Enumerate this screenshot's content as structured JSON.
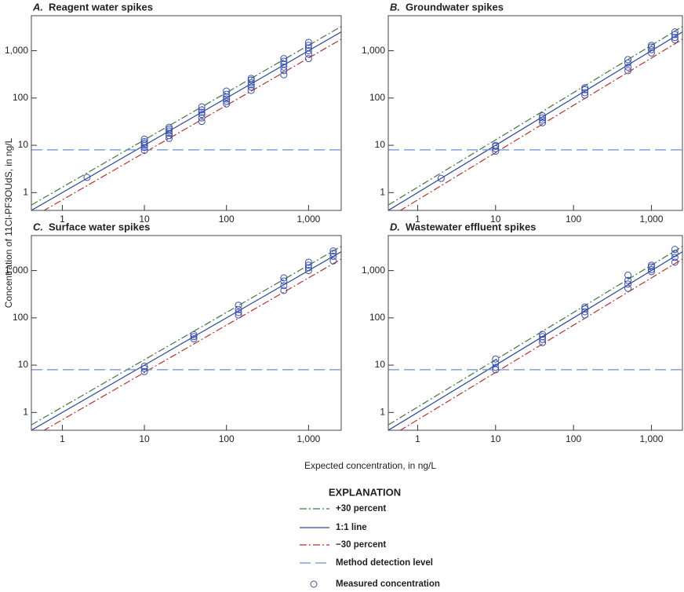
{
  "y_label": "Concentration of 11Cl-PF3OUdS, in ng/L",
  "x_label": "Expected concentration, in ng/L",
  "legend_title": "EXPLANATION",
  "chart_data": [
    {
      "type": "scatter",
      "panel": "A.",
      "title": "Reagent water spikes",
      "xscale": "log",
      "yscale": "log",
      "xlim": [
        0.42,
        2500
      ],
      "ylim": [
        0.42,
        5500
      ],
      "xticks": [
        1,
        10,
        100,
        {
          "value": 1000,
          "label": "1,000"
        }
      ],
      "yticks": [
        1,
        10,
        100,
        {
          "value": 1000,
          "label": "1,000"
        }
      ],
      "series": [
        {
          "name": "+30 percent",
          "color": "#3d7a3d",
          "style": "dash-dot",
          "x": [
            0.42,
            2500
          ],
          "values": [
            0.546,
            3250
          ]
        },
        {
          "name": "1:1 line",
          "color": "#2a4aa0",
          "style": "solid",
          "x": [
            0.42,
            2500
          ],
          "values": [
            0.42,
            2500
          ]
        },
        {
          "name": "−30 percent",
          "color": "#c0302a",
          "style": "dash-dot",
          "x": [
            0.42,
            2500
          ],
          "values": [
            0.294,
            1750
          ]
        },
        {
          "name": "Method detection level",
          "color": "#6a8fd0",
          "style": "dashed",
          "x": [
            0.42,
            2500
          ],
          "values": [
            8,
            8
          ]
        },
        {
          "name": "Measured concentration",
          "color": "#3a4fb0",
          "style": "marker",
          "x": [
            2,
            10,
            10,
            10,
            10,
            10,
            10,
            20,
            20,
            20,
            20,
            20,
            20,
            50,
            50,
            50,
            50,
            50,
            50,
            100,
            100,
            100,
            100,
            100,
            100,
            200,
            200,
            200,
            200,
            200,
            200,
            500,
            500,
            500,
            500,
            500,
            500,
            1000,
            1000,
            1000,
            1000,
            1000,
            1000
          ],
          "values": [
            2.1,
            7.8,
            9,
            10,
            11,
            12,
            13.5,
            14,
            16,
            18,
            20,
            22,
            24,
            32,
            38,
            45,
            50,
            56,
            65,
            75,
            85,
            95,
            105,
            120,
            140,
            145,
            170,
            190,
            210,
            240,
            260,
            310,
            380,
            450,
            520,
            600,
            680,
            680,
            850,
            1000,
            1150,
            1300,
            1500
          ]
        }
      ]
    },
    {
      "type": "scatter",
      "panel": "B.",
      "title": "Groundwater spikes",
      "xscale": "log",
      "yscale": "log",
      "xlim": [
        0.42,
        2500
      ],
      "ylim": [
        0.42,
        5500
      ],
      "xticks": [
        1,
        10,
        100,
        {
          "value": 1000,
          "label": "1,000"
        }
      ],
      "yticks": [
        1,
        10,
        100,
        {
          "value": 1000,
          "label": "1,000"
        }
      ],
      "series": [
        {
          "name": "+30 percent",
          "color": "#3d7a3d",
          "style": "dash-dot",
          "x": [
            0.42,
            2500
          ],
          "values": [
            0.546,
            3250
          ]
        },
        {
          "name": "1:1 line",
          "color": "#2a4aa0",
          "style": "solid",
          "x": [
            0.42,
            2500
          ],
          "values": [
            0.42,
            2500
          ]
        },
        {
          "name": "−30 percent",
          "color": "#c0302a",
          "style": "dash-dot",
          "x": [
            0.42,
            2500
          ],
          "values": [
            0.294,
            1750
          ]
        },
        {
          "name": "Method detection level",
          "color": "#6a8fd0",
          "style": "dashed",
          "x": [
            0.42,
            2500
          ],
          "values": [
            8,
            8
          ]
        },
        {
          "name": "Measured concentration",
          "color": "#3a4fb0",
          "style": "marker",
          "x": [
            2,
            10,
            10,
            10,
            10,
            40,
            40,
            40,
            40,
            140,
            140,
            140,
            140,
            500,
            500,
            500,
            500,
            1000,
            1000,
            1000,
            1000,
            2000,
            2000,
            2000,
            2000
          ],
          "values": [
            2,
            7.5,
            8.5,
            9.5,
            10,
            30,
            34,
            38,
            42,
            115,
            130,
            150,
            165,
            380,
            450,
            550,
            650,
            900,
            1050,
            1200,
            1300,
            1700,
            1900,
            2200,
            2500
          ]
        }
      ]
    },
    {
      "type": "scatter",
      "panel": "C.",
      "title": "Surface water spikes",
      "xscale": "log",
      "yscale": "log",
      "xlim": [
        0.42,
        2500
      ],
      "ylim": [
        0.42,
        5500
      ],
      "xticks": [
        1,
        10,
        100,
        {
          "value": 1000,
          "label": "1,000"
        }
      ],
      "yticks": [
        1,
        10,
        100,
        {
          "value": 1000,
          "label": "1,000"
        }
      ],
      "series": [
        {
          "name": "+30 percent",
          "color": "#3d7a3d",
          "style": "dash-dot",
          "x": [
            0.42,
            2500
          ],
          "values": [
            0.546,
            3250
          ]
        },
        {
          "name": "1:1 line",
          "color": "#2a4aa0",
          "style": "solid",
          "x": [
            0.42,
            2500
          ],
          "values": [
            0.42,
            2500
          ]
        },
        {
          "name": "−30 percent",
          "color": "#c0302a",
          "style": "dash-dot",
          "x": [
            0.42,
            2500
          ],
          "values": [
            0.294,
            1750
          ]
        },
        {
          "name": "Method detection level",
          "color": "#6a8fd0",
          "style": "dashed",
          "x": [
            0.42,
            2500
          ],
          "values": [
            8,
            8
          ]
        },
        {
          "name": "Measured concentration",
          "color": "#3a4fb0",
          "style": "marker",
          "x": [
            10,
            10,
            10,
            40,
            40,
            40,
            140,
            140,
            140,
            140,
            500,
            500,
            500,
            500,
            1000,
            1000,
            1000,
            1000,
            2000,
            2000,
            2000,
            2000
          ],
          "values": [
            7.3,
            8.5,
            9.5,
            36,
            40,
            44,
            115,
            130,
            150,
            185,
            380,
            480,
            600,
            700,
            1000,
            1150,
            1300,
            1500,
            1600,
            2000,
            2300,
            2600
          ]
        }
      ]
    },
    {
      "type": "scatter",
      "panel": "D.",
      "title": "Wastewater effluent spikes",
      "xscale": "log",
      "yscale": "log",
      "xlim": [
        0.42,
        2500
      ],
      "ylim": [
        0.42,
        5500
      ],
      "xticks": [
        1,
        10,
        100,
        {
          "value": 1000,
          "label": "1,000"
        }
      ],
      "yticks": [
        1,
        10,
        100,
        {
          "value": 1000,
          "label": "1,000"
        }
      ],
      "series": [
        {
          "name": "+30 percent",
          "color": "#3d7a3d",
          "style": "dash-dot",
          "x": [
            0.42,
            2500
          ],
          "values": [
            0.546,
            3250
          ]
        },
        {
          "name": "1:1 line",
          "color": "#2a4aa0",
          "style": "solid",
          "x": [
            0.42,
            2500
          ],
          "values": [
            0.42,
            2500
          ]
        },
        {
          "name": "−30 percent",
          "color": "#c0302a",
          "style": "dash-dot",
          "x": [
            0.42,
            2500
          ],
          "values": [
            0.294,
            1750
          ]
        },
        {
          "name": "Method detection level",
          "color": "#6a8fd0",
          "style": "dashed",
          "x": [
            0.42,
            2500
          ],
          "values": [
            8,
            8
          ]
        },
        {
          "name": "Measured concentration",
          "color": "#3a4fb0",
          "style": "marker",
          "x": [
            10,
            10,
            10,
            10,
            40,
            40,
            40,
            40,
            140,
            140,
            140,
            140,
            500,
            500,
            500,
            500,
            1000,
            1000,
            1000,
            1000,
            2000,
            2000,
            2000,
            2000
          ],
          "values": [
            8,
            9,
            11,
            13.5,
            30,
            35,
            40,
            45,
            115,
            135,
            155,
            170,
            420,
            520,
            620,
            800,
            950,
            1050,
            1200,
            1300,
            1500,
            1900,
            2300,
            2800
          ]
        }
      ]
    }
  ]
}
